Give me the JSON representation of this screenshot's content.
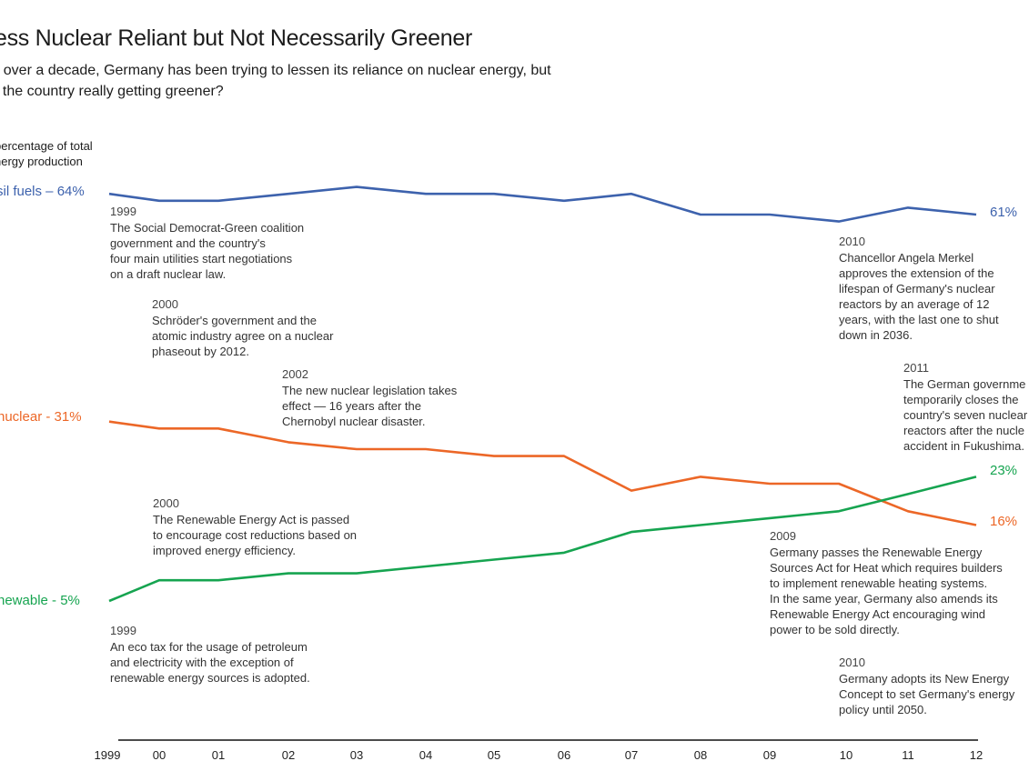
{
  "title": "ess Nuclear Reliant but Not Necessarily Greener",
  "subtitle": "r over a decade, Germany has been trying to lessen its reliance on nuclear energy, but\nt the country really getting greener?",
  "chart_data": {
    "type": "line",
    "ylabel": "percentage of total\nnergy production",
    "x": [
      "1999",
      "00",
      "01",
      "02",
      "03",
      "04",
      "05",
      "06",
      "07",
      "08",
      "09",
      "10",
      "11",
      "12"
    ],
    "ylim": [
      0,
      70
    ],
    "grid": false,
    "series": [
      {
        "name": "fossil",
        "start_label": "sil fuels – 64%",
        "end_label": "61%",
        "color": "#3d62ad",
        "values": [
          64,
          63,
          63,
          64,
          65,
          64,
          64,
          63,
          64,
          61,
          61,
          60,
          62,
          61
        ]
      },
      {
        "name": "nuclear",
        "start_label": "nuclear - 31%",
        "end_label": "16%",
        "color": "#ec6727",
        "values": [
          31,
          30,
          30,
          28,
          27,
          27,
          26,
          26,
          21,
          23,
          22,
          22,
          18,
          16
        ]
      },
      {
        "name": "renewable",
        "start_label": "newable -  5%",
        "end_label": "23%",
        "color": "#16a450",
        "values": [
          5,
          8,
          8,
          9,
          9,
          10,
          11,
          12,
          15,
          16,
          17,
          18,
          20.5,
          23
        ]
      }
    ],
    "annotations": [
      {
        "id": "1999-coalition",
        "year": "1999",
        "text": "The Social Democrat-Green coalition\ngovernment and the country's\nfour main utilities start negotiations\non a draft nuclear law."
      },
      {
        "id": "2000-phaseout",
        "year": "2000",
        "text": "Schröder's government and the\natomic industry agree on a nuclear\nphaseout by 2012."
      },
      {
        "id": "2002-legislation",
        "year": "2002",
        "text": "The new nuclear legislation takes\neffect  — 16 years after the\nChernobyl nuclear disaster."
      },
      {
        "id": "2010-merkel",
        "year": "2010",
        "text": "Chancellor Angela Merkel\napproves the extension of the\nlifespan of Germany's nuclear\nreactors by an average of 12\nyears, with the last one to shut\ndown in 2036."
      },
      {
        "id": "2011-fukushima",
        "year": "2011",
        "text": "The German governme\ntemporarily closes the\ncountry's seven nuclear\nreactors after the nucle\naccident in Fukushima."
      },
      {
        "id": "2000-renewable-act",
        "year": "2000",
        "text": "The Renewable Energy Act is passed\nto encourage cost reductions based on\nimproved energy efficiency."
      },
      {
        "id": "2009-heat-act",
        "year": "2009",
        "text": "Germany passes the Renewable Energy\nSources Act for Heat which requires builders\nto implement renewable heating systems.\nIn the same year, Germany also amends its\nRenewable Energy Act encouraging wind\npower to be sold directly."
      },
      {
        "id": "1999-eco-tax",
        "year": "1999",
        "text": "An eco tax for the usage of petroleum\nand electricity with the exception of\nrenewable energy sources is adopted."
      },
      {
        "id": "2010-energy-concept",
        "year": "2010",
        "text": "Germany adopts its New Energy\nConcept to set Germany's energy\npolicy until 2050."
      }
    ]
  }
}
